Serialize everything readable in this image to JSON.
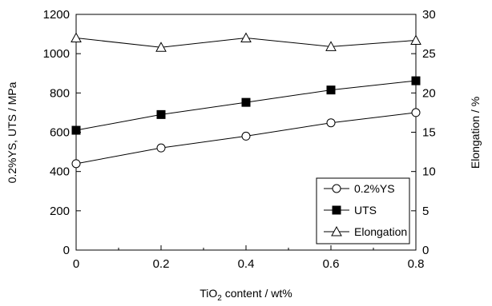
{
  "chart_data": {
    "type": "line",
    "x": [
      0,
      0.2,
      0.4,
      0.6,
      0.8
    ],
    "x_tick_labels": [
      "0",
      "0.2",
      "0.4",
      "0.6",
      "0.8"
    ],
    "xlim": [
      0,
      0.8
    ],
    "xlabel": {
      "prefix": "TiO",
      "subscript": "2",
      "suffix": " content / wt%"
    },
    "ylabel_left": "0.2%YS, UTS / MPa",
    "ylabel_right": "Elongation / %",
    "ylim_left": [
      0,
      1200
    ],
    "ylim_right": [
      0,
      30
    ],
    "y_left_ticks": [
      "0",
      "200",
      "400",
      "600",
      "800",
      "1000",
      "1200"
    ],
    "y_right_ticks": [
      "0",
      "5",
      "10",
      "15",
      "20",
      "25",
      "30"
    ],
    "grid": false,
    "legend_placement": "bottom-right",
    "series": [
      {
        "name": "0.2%YS",
        "axis": "left",
        "marker": "circle-open",
        "values": [
          440,
          520,
          580,
          648,
          700
        ]
      },
      {
        "name": "UTS",
        "axis": "left",
        "marker": "square-filled",
        "values": [
          610,
          690,
          752,
          815,
          862
        ]
      },
      {
        "name": "Elongation",
        "axis": "right",
        "marker": "triangle-open",
        "values": [
          27.0,
          25.8,
          27.0,
          25.9,
          26.7
        ]
      }
    ]
  }
}
